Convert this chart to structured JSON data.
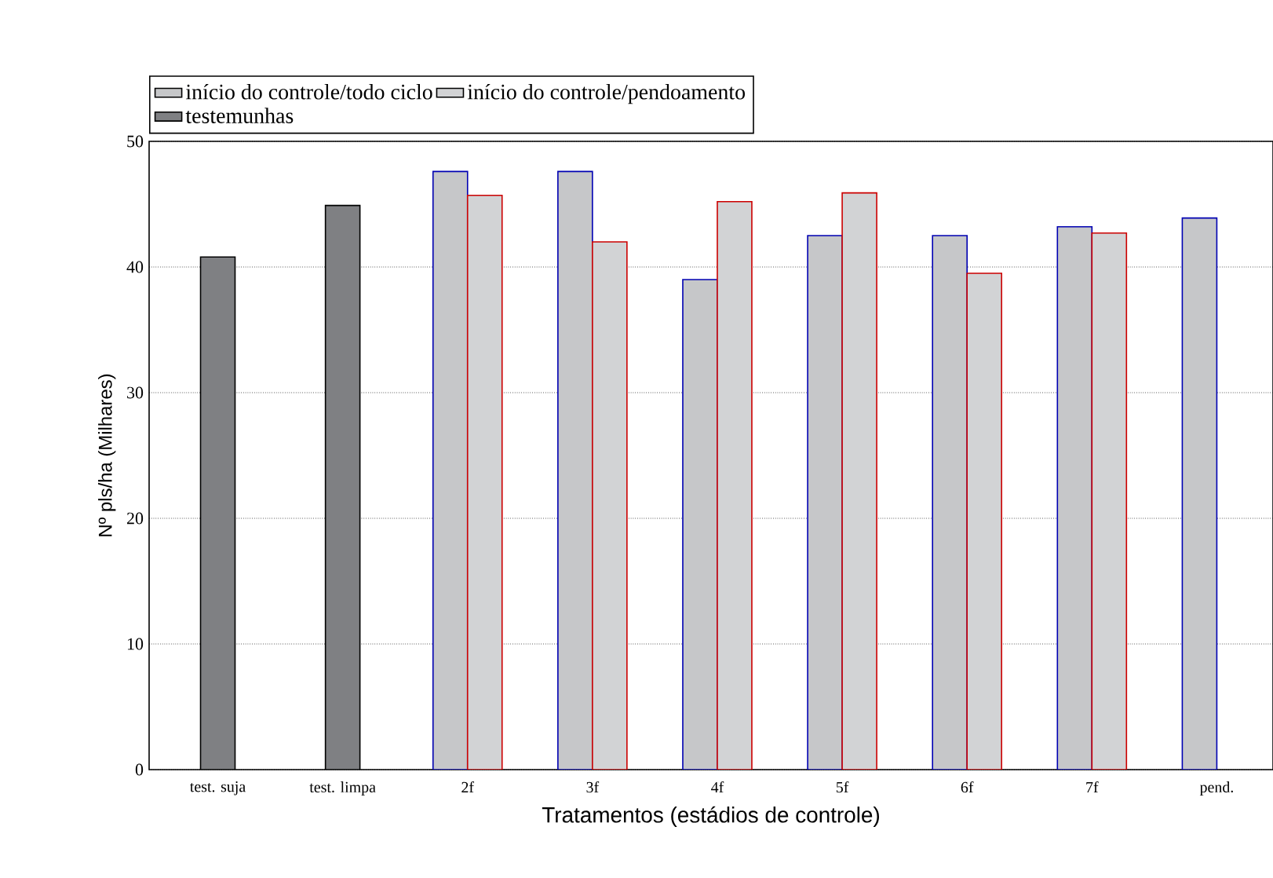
{
  "chart_data": {
    "type": "bar",
    "xlabel": "Tratamentos (estádios de controle)",
    "ylabel": "Nº pls/ha (Milhares)",
    "categories": [
      "test. suja",
      "test. limpa",
      "2f",
      "3f",
      "4f",
      "5f",
      "6f",
      "7f",
      "pend."
    ],
    "series": [
      {
        "name": "início do controle/todo ciclo",
        "color": "#c6c7c9",
        "values": [
          null,
          null,
          47.6,
          47.6,
          39.0,
          42.5,
          42.5,
          43.2,
          43.9
        ]
      },
      {
        "name": "início do controle/pendoamento",
        "color": "#d2d3d5",
        "values": [
          null,
          null,
          45.7,
          42.0,
          45.2,
          45.9,
          39.5,
          42.7,
          null
        ]
      },
      {
        "name": "testemunhas",
        "color": "#7f8083",
        "values": [
          40.8,
          44.9,
          null,
          null,
          null,
          null,
          null,
          null,
          null
        ]
      }
    ],
    "ylim": [
      0,
      50
    ],
    "yticks": [
      0,
      10,
      20,
      30,
      40,
      50
    ],
    "grid": "y",
    "legend": "top"
  }
}
